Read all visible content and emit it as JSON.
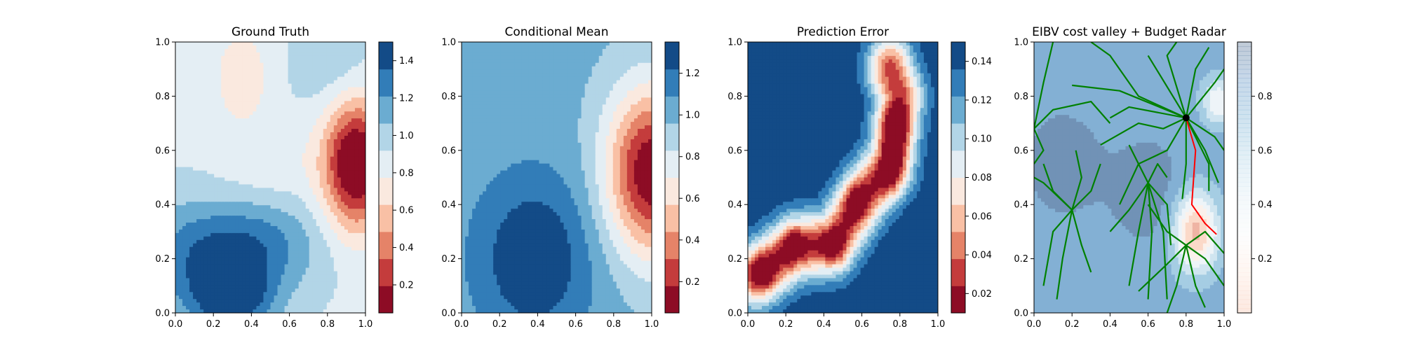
{
  "chart_data": [
    {
      "type": "heatmap",
      "title": "Ground Truth",
      "xlabel": "",
      "ylabel": "",
      "xlim": [
        0,
        1
      ],
      "ylim": [
        0,
        1
      ],
      "x_ticks": [
        "0.0",
        "0.2",
        "0.4",
        "0.6",
        "0.8",
        "1.0"
      ],
      "y_ticks": [
        "0.0",
        "0.2",
        "0.4",
        "0.6",
        "0.8",
        "1.0"
      ],
      "colormap": "RdBu",
      "colorbar": {
        "range": [
          0.05,
          1.5
        ],
        "ticks": [
          "0.2",
          "0.4",
          "0.6",
          "0.8",
          "1.0",
          "1.2",
          "1.4"
        ],
        "tick_values": [
          0.2,
          0.4,
          0.6,
          0.8,
          1.0,
          1.2,
          1.4
        ]
      },
      "field": {
        "base": 0.9,
        "features": [
          {
            "x": 0.95,
            "y": 0.55,
            "sx": 0.12,
            "sy": 0.17,
            "amp": -0.95
          },
          {
            "x": 0.3,
            "y": 0.05,
            "sx": 0.16,
            "sy": 0.1,
            "amp": 0.55
          },
          {
            "x": 0.4,
            "y": 0.25,
            "sx": 0.25,
            "sy": 0.12,
            "amp": 0.4
          },
          {
            "x": 0.05,
            "y": 0.2,
            "sx": 0.2,
            "sy": 0.15,
            "amp": 0.25
          },
          {
            "x": 0.35,
            "y": 0.87,
            "sx": 0.1,
            "sy": 0.12,
            "amp": -0.25
          },
          {
            "x": 0.85,
            "y": 0.9,
            "sx": 0.15,
            "sy": 0.12,
            "amp": 0.15
          },
          {
            "x": 0.5,
            "y": 0.55,
            "sx": 0.2,
            "sy": 0.1,
            "amp": -0.1
          }
        ]
      }
    },
    {
      "type": "heatmap",
      "title": "Conditional Mean",
      "xlabel": "",
      "ylabel": "",
      "xlim": [
        0,
        1
      ],
      "ylim": [
        0,
        1
      ],
      "x_ticks": [
        "0.0",
        "0.2",
        "0.4",
        "0.6",
        "0.8",
        "1.0"
      ],
      "y_ticks": [
        "0.0",
        "0.2",
        "0.4",
        "0.6",
        "0.8",
        "1.0"
      ],
      "colormap": "RdBu",
      "colorbar": {
        "range": [
          0.05,
          1.35
        ],
        "ticks": [
          "0.2",
          "0.4",
          "0.6",
          "0.8",
          "1.0",
          "1.2"
        ],
        "tick_values": [
          0.2,
          0.4,
          0.6,
          0.8,
          1.0,
          1.2
        ]
      },
      "field": {
        "base": 1.0,
        "features": [
          {
            "x": 1.0,
            "y": 0.52,
            "sx": 0.17,
            "sy": 0.22,
            "amp": -0.95
          },
          {
            "x": 0.38,
            "y": 0.2,
            "sx": 0.22,
            "sy": 0.22,
            "amp": 0.35
          }
        ]
      }
    },
    {
      "type": "heatmap",
      "title": "Prediction Error",
      "xlabel": "",
      "ylabel": "",
      "xlim": [
        0,
        1
      ],
      "ylim": [
        0,
        1
      ],
      "x_ticks": [
        "0.0",
        "0.2",
        "0.4",
        "0.6",
        "0.8",
        "1.0"
      ],
      "y_ticks": [
        "0.0",
        "0.2",
        "0.4",
        "0.6",
        "0.8",
        "1.0"
      ],
      "colormap": "RdBu",
      "colorbar": {
        "range": [
          0.01,
          0.15
        ],
        "ticks": [
          "0.02",
          "0.04",
          "0.06",
          "0.08",
          "0.10",
          "0.12",
          "0.14"
        ],
        "tick_values": [
          0.02,
          0.04,
          0.06,
          0.08,
          0.1,
          0.12,
          0.14
        ]
      },
      "field": {
        "base": 0.15,
        "path": [
          [
            0.05,
            0.14
          ],
          [
            0.25,
            0.24
          ],
          [
            0.45,
            0.26
          ],
          [
            0.6,
            0.42
          ],
          [
            0.75,
            0.55
          ],
          [
            0.8,
            0.8
          ],
          [
            0.75,
            0.9
          ]
        ],
        "path_sigma": 0.085,
        "path_amp": -0.12,
        "hotspots": [
          {
            "x": 0.08,
            "y": 0.15,
            "s": 0.05,
            "amp": -0.04
          },
          {
            "x": 0.24,
            "y": 0.25,
            "s": 0.05,
            "amp": -0.04
          },
          {
            "x": 0.45,
            "y": 0.25,
            "s": 0.05,
            "amp": -0.04
          },
          {
            "x": 0.57,
            "y": 0.41,
            "s": 0.05,
            "amp": -0.04
          },
          {
            "x": 0.75,
            "y": 0.5,
            "s": 0.05,
            "amp": -0.04
          },
          {
            "x": 0.77,
            "y": 0.6,
            "s": 0.05,
            "amp": -0.04
          },
          {
            "x": 0.78,
            "y": 0.7,
            "s": 0.05,
            "amp": -0.05
          }
        ]
      }
    },
    {
      "type": "heatmap",
      "title": "EIBV cost valley + Budget Radar",
      "xlabel": "",
      "ylabel": "",
      "xlim": [
        0,
        1
      ],
      "ylim": [
        0,
        1
      ],
      "x_ticks": [
        "0.0",
        "0.2",
        "0.4",
        "0.6",
        "0.8",
        "1.0"
      ],
      "y_ticks": [
        "0.0",
        "0.2",
        "0.4",
        "0.6",
        "0.8",
        "1.0"
      ],
      "colormap": "RdBu (semi-transparent)",
      "colorbar": {
        "range": [
          0.0,
          1.0
        ],
        "ticks": [
          "0.2",
          "0.4",
          "0.6",
          "0.8"
        ],
        "tick_values": [
          0.2,
          0.4,
          0.6,
          0.8
        ]
      },
      "field": {
        "base": 0.85,
        "features": [
          {
            "x": 0.85,
            "y": 0.3,
            "sx": 0.08,
            "sy": 0.1,
            "amp": -0.6
          },
          {
            "x": 0.97,
            "y": 0.78,
            "sx": 0.06,
            "sy": 0.06,
            "amp": -0.35
          },
          {
            "x": 0.6,
            "y": 0.45,
            "sx": 0.15,
            "sy": 0.15,
            "amp": 0.1
          },
          {
            "x": 0.15,
            "y": 0.55,
            "sx": 0.15,
            "sy": 0.15,
            "amp": 0.1
          }
        ]
      },
      "trees": [
        {
          "origin": [
            0.8,
            0.72
          ],
          "branches": [
            [
              [
                0.55,
                0.8
              ],
              [
                0.4,
                0.95
              ],
              [
                0.3,
                1.0
              ]
            ],
            [
              [
                0.6,
                0.95
              ]
            ],
            [
              [
                0.7,
                0.95
              ],
              [
                0.75,
                1.0
              ]
            ],
            [
              [
                0.85,
                0.9
              ],
              [
                0.92,
                0.98
              ]
            ],
            [
              [
                0.95,
                0.85
              ],
              [
                1.0,
                0.9
              ]
            ],
            [
              [
                0.95,
                0.65
              ],
              [
                1.0,
                0.6
              ]
            ],
            [
              [
                0.9,
                0.6
              ],
              [
                0.97,
                0.48
              ]
            ],
            [
              [
                0.92,
                0.55
              ],
              [
                0.92,
                0.45
              ]
            ],
            [
              [
                0.8,
                0.55
              ],
              [
                0.78,
                0.42
              ]
            ],
            [
              [
                0.7,
                0.6
              ],
              [
                0.55,
                0.55
              ],
              [
                0.45,
                0.4
              ]
            ],
            [
              [
                0.68,
                0.68
              ],
              [
                0.55,
                0.7
              ],
              [
                0.35,
                0.62
              ]
            ],
            [
              [
                0.45,
                0.82
              ],
              [
                0.2,
                0.84
              ]
            ],
            [
              [
                0.5,
                0.76
              ],
              [
                0.4,
                0.72
              ]
            ]
          ]
        },
        {
          "origin": [
            0.0,
            0.68
          ],
          "branches": [
            [
              [
                0.05,
                0.85
              ],
              [
                0.1,
                1.0
              ]
            ],
            [
              [
                0.1,
                0.75
              ],
              [
                0.3,
                0.78
              ],
              [
                0.4,
                0.7
              ]
            ],
            [
              [
                0.05,
                0.6
              ],
              [
                0.0,
                0.55
              ]
            ]
          ]
        },
        {
          "origin": [
            0.2,
            0.38
          ],
          "branches": [
            [
              [
                0.1,
                0.3
              ],
              [
                0.05,
                0.1
              ]
            ],
            [
              [
                0.15,
                0.2
              ],
              [
                0.12,
                0.05
              ]
            ],
            [
              [
                0.25,
                0.25
              ],
              [
                0.3,
                0.15
              ]
            ],
            [
              [
                0.05,
                0.48
              ],
              [
                0.0,
                0.5
              ]
            ],
            [
              [
                0.1,
                0.45
              ],
              [
                0.05,
                0.55
              ]
            ],
            [
              [
                0.3,
                0.45
              ],
              [
                0.35,
                0.55
              ]
            ],
            [
              [
                0.25,
                0.5
              ],
              [
                0.22,
                0.6
              ]
            ]
          ]
        },
        {
          "origin": [
            0.6,
            0.48
          ],
          "branches": [
            [
              [
                0.55,
                0.3
              ],
              [
                0.5,
                0.1
              ]
            ],
            [
              [
                0.62,
                0.3
              ],
              [
                0.6,
                0.05
              ]
            ],
            [
              [
                0.68,
                0.3
              ],
              [
                0.7,
                0.05
              ]
            ],
            [
              [
                0.5,
                0.38
              ],
              [
                0.4,
                0.3
              ]
            ],
            [
              [
                0.55,
                0.55
              ],
              [
                0.5,
                0.62
              ]
            ],
            [
              [
                0.65,
                0.55
              ],
              [
                0.7,
                0.5
              ]
            ],
            [
              [
                0.7,
                0.4
              ],
              [
                0.72,
                0.25
              ]
            ]
          ]
        },
        {
          "origin": [
            0.8,
            0.25
          ],
          "branches": [
            [
              [
                0.7,
                0.18
              ],
              [
                0.55,
                0.08
              ]
            ],
            [
              [
                0.75,
                0.1
              ],
              [
                0.7,
                0.0
              ]
            ],
            [
              [
                0.85,
                0.1
              ],
              [
                0.9,
                0.02
              ]
            ],
            [
              [
                0.9,
                0.2
              ],
              [
                1.0,
                0.1
              ]
            ],
            [
              [
                0.9,
                0.3
              ],
              [
                1.0,
                0.22
              ]
            ],
            [
              [
                0.7,
                0.3
              ],
              [
                0.6,
                0.4
              ]
            ]
          ]
        }
      ],
      "path": [
        [
          0.8,
          0.72
        ],
        [
          0.85,
          0.6
        ],
        [
          0.83,
          0.4
        ],
        [
          0.9,
          0.33
        ],
        [
          0.96,
          0.29
        ]
      ],
      "current_position": [
        0.8,
        0.72
      ]
    }
  ]
}
